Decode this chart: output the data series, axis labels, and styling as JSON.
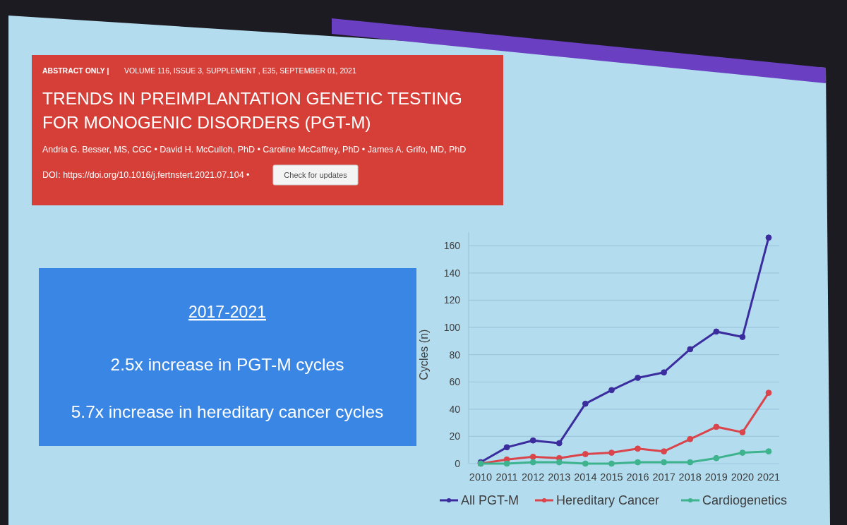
{
  "chart_data": {
    "type": "line",
    "title": "TRENDS IN PREIMPLANTATION GENETIC TESTING FOR MONOGENIC DISORDERS (PGT-M)",
    "annotations": [
      "ABSTRACT ONLY |",
      "VOLUME 116, ISSUE 3, SUPPLEMENT , E35, SEPTEMBER 01, 2021",
      "Andria G. Besser, MS, CGC • David H. McCulloh, PhD • Caroline McCaffrey, PhD • James A. Grifo, MD, PhD",
      "DOI: https://doi.org/10.1016/j.fertnstert.2021.07.104 •",
      "Check for updates",
      "2017-2021",
      "2.5x increase in PGT-M cycles",
      "5.7x increase in hereditary cancer cycles"
    ],
    "ylabel": "Cycles (n)",
    "categories": [
      "2010",
      "2011",
      "2012",
      "2013",
      "2014",
      "2015",
      "2016",
      "2017",
      "2018",
      "2019",
      "2020",
      "2021"
    ],
    "series": [
      {
        "name": "All PGT-M",
        "color": "#3b2d9e",
        "values": [
          1,
          12,
          17,
          15,
          44,
          54,
          63,
          67,
          84,
          97,
          93,
          166
        ]
      },
      {
        "name": "Hereditary Cancer",
        "color": "#d9454b",
        "values": [
          0,
          3,
          5,
          4,
          7,
          8,
          11,
          9,
          18,
          27,
          23,
          52
        ]
      },
      {
        "name": "Cardiogenetics",
        "color": "#3db38e",
        "values": [
          0,
          0,
          1,
          1,
          0,
          0,
          1,
          1,
          1,
          4,
          8,
          9
        ]
      }
    ],
    "ylim": [
      0,
      170
    ],
    "yticks": [
      0,
      20,
      40,
      60,
      80,
      100,
      120,
      140,
      160
    ],
    "grid": "y",
    "legend": "bottom",
    "marker": "circle"
  }
}
